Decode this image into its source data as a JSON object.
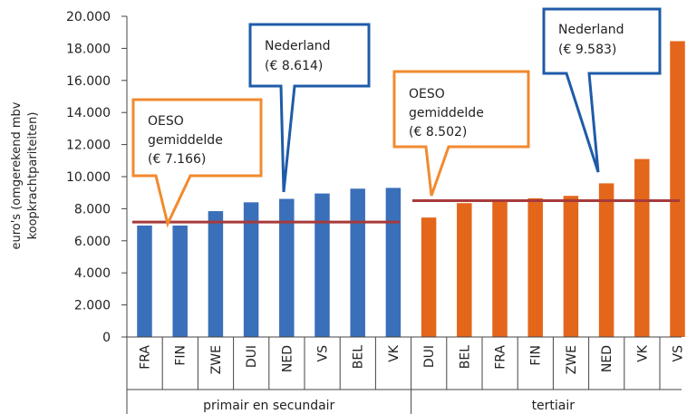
{
  "chart_data": {
    "type": "bar",
    "ylabel": "euro's (omgerekend mbv koopkrachtpariteiten)",
    "ylim": [
      0,
      20000
    ],
    "yticks": [
      "0",
      "2.000",
      "4.000",
      "6.000",
      "8.000",
      "10.000",
      "12.000",
      "14.000",
      "16.000",
      "18.000",
      "20.000"
    ],
    "ytick_values": [
      0,
      2000,
      4000,
      6000,
      8000,
      10000,
      12000,
      14000,
      16000,
      18000,
      20000
    ],
    "groups": [
      {
        "label": "primair en secundair",
        "color": "#3a6fba",
        "categories": [
          "FRA",
          "FIN",
          "ZWE",
          "DUI",
          "NED",
          "VS",
          "BEL",
          "VK"
        ],
        "values": [
          6950,
          6950,
          7850,
          8400,
          8614,
          8950,
          9250,
          9300
        ],
        "oecd_average": 7166,
        "oecd_label": [
          "OESO",
          "gemiddelde",
          "(€ 7.166)"
        ],
        "nl_label": [
          "Nederland",
          "(€ 8.614)"
        ]
      },
      {
        "label": "tertiair",
        "color": "#e3661a",
        "categories": [
          "DUI",
          "BEL",
          "FRA",
          "FIN",
          "ZWE",
          "NED",
          "VK",
          "VS"
        ],
        "values": [
          7450,
          8350,
          8450,
          8650,
          8800,
          9583,
          11100,
          18450
        ],
        "oecd_average": 8502,
        "oecd_label": [
          "OESO",
          "gemiddelde",
          "(€ 8.502)"
        ],
        "nl_label": [
          "Nederland",
          "(€ 9.583)"
        ]
      }
    ],
    "average_line_color": "#a83a3a",
    "callout_colors": {
      "oecd": "#f28a2e",
      "nl": "#1f5ba8"
    },
    "grid": false,
    "legend": "none"
  }
}
